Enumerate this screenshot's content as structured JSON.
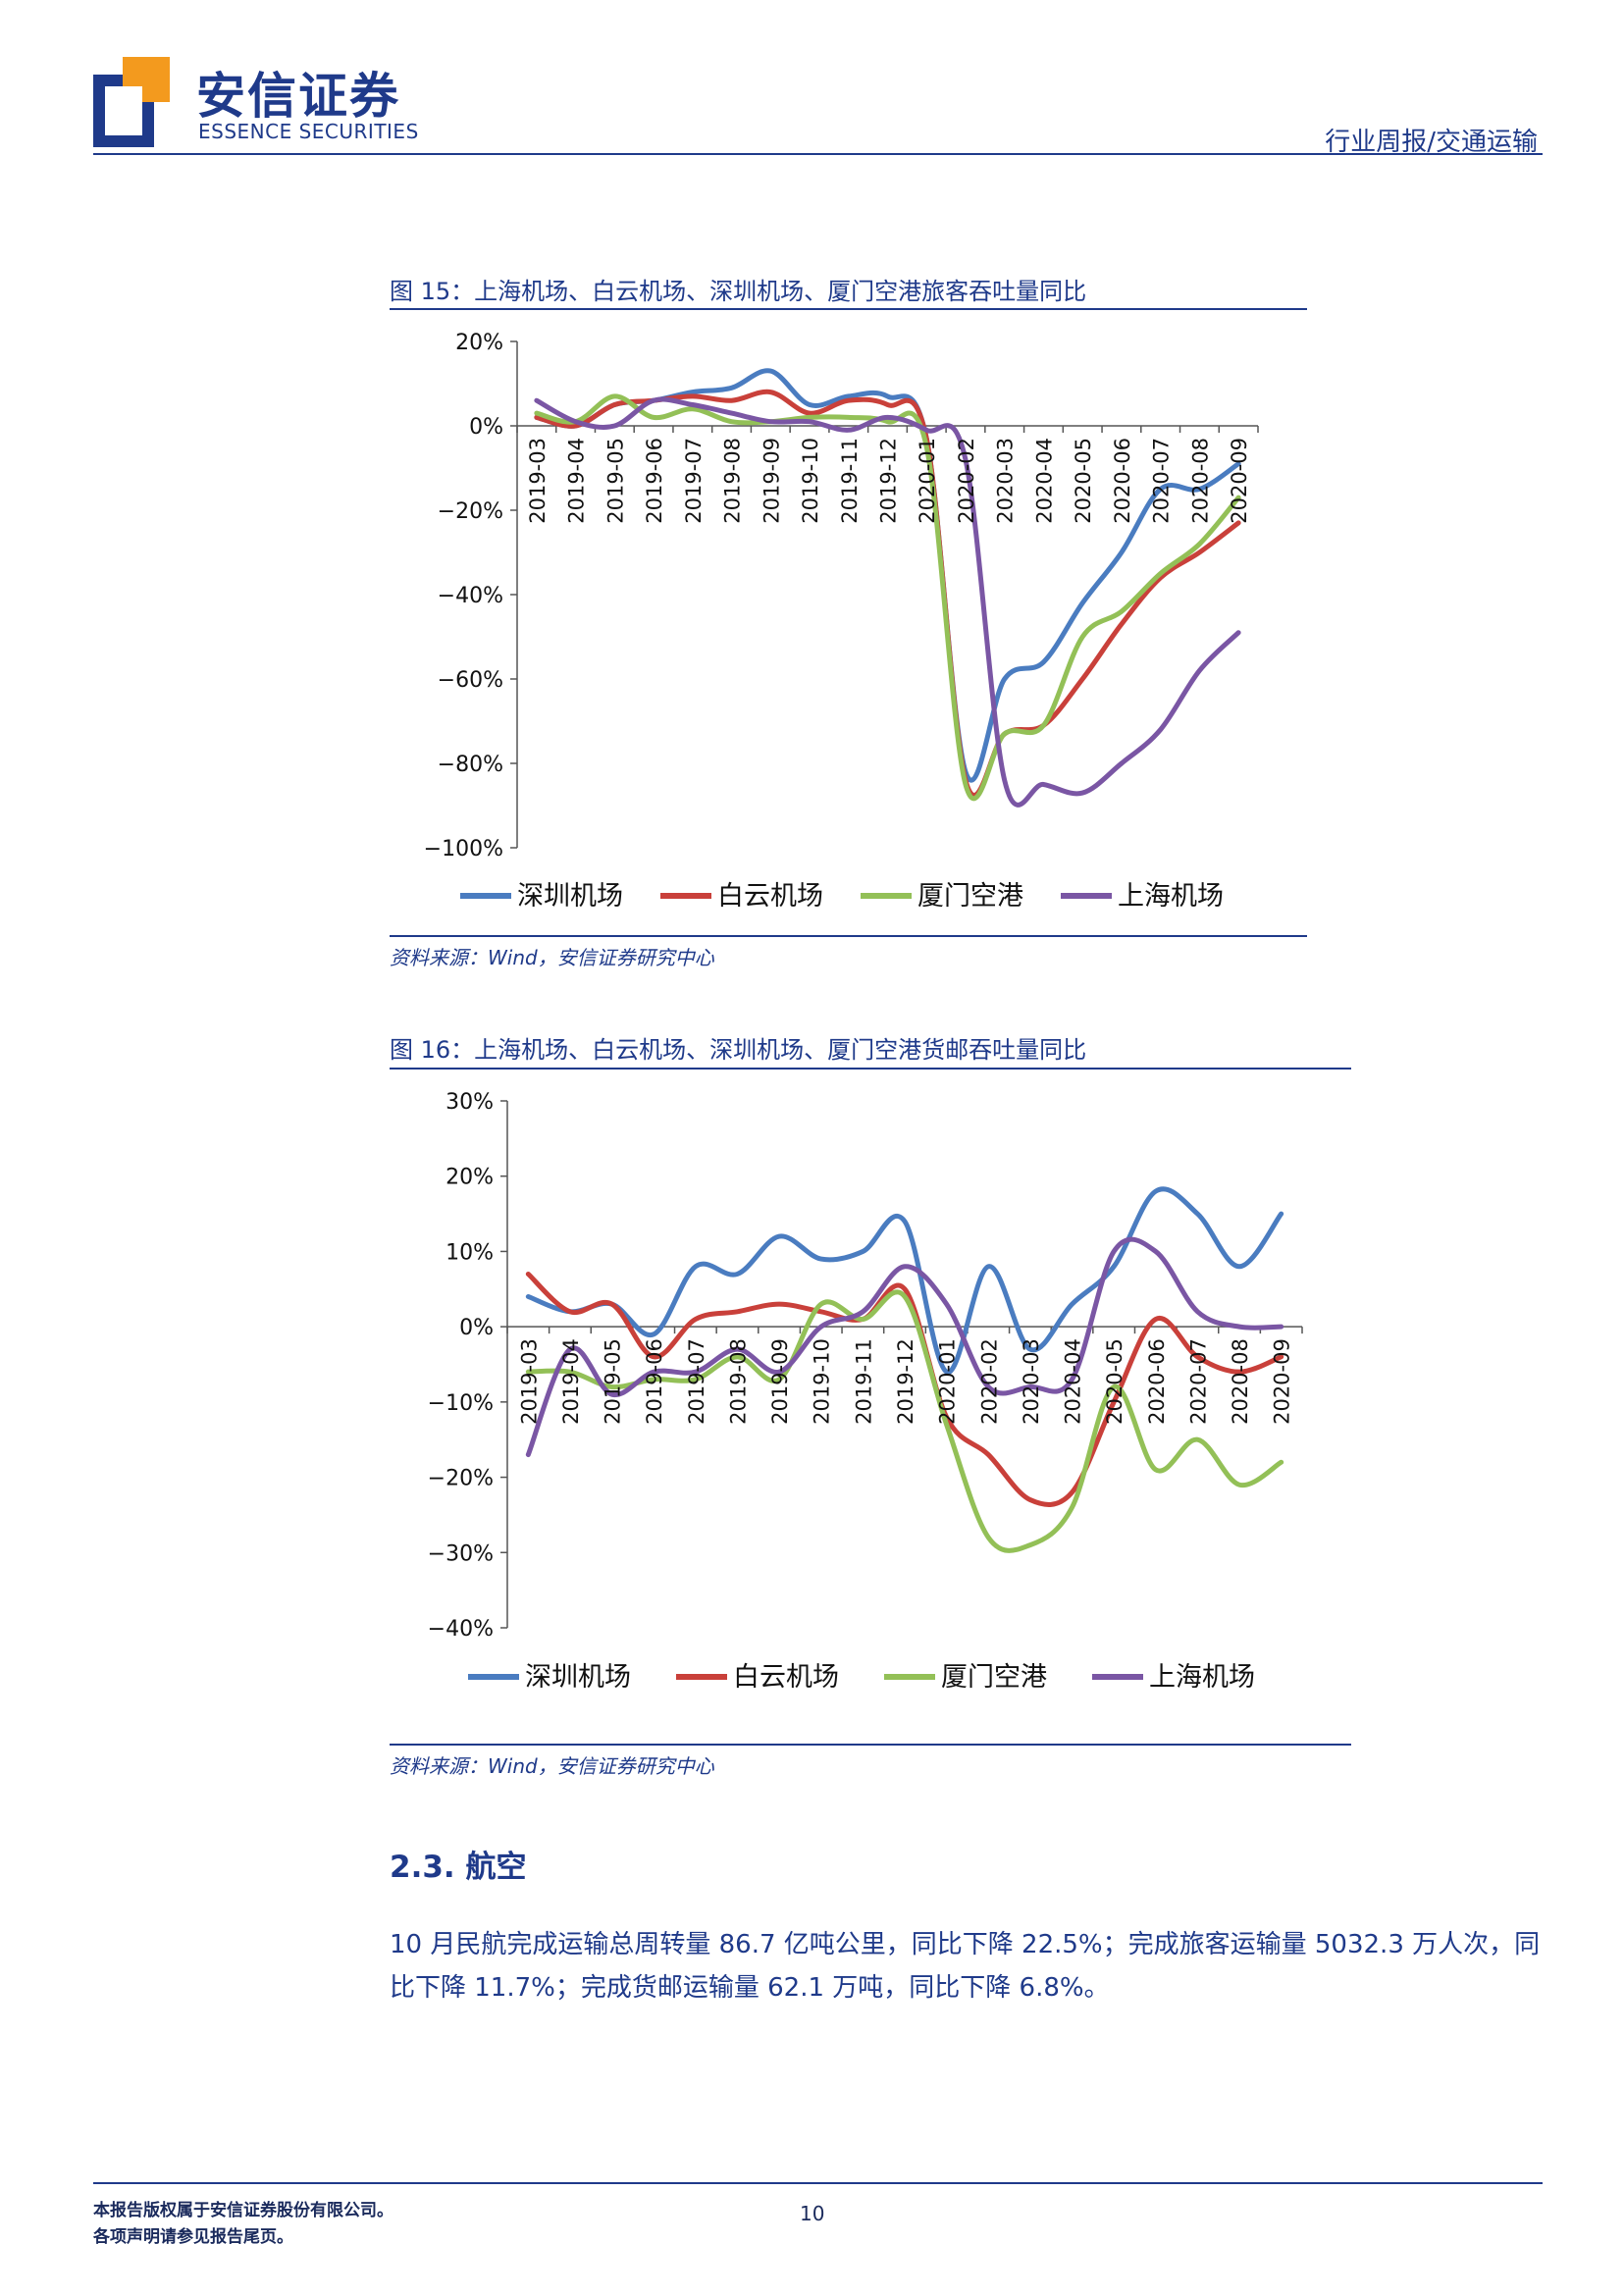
{
  "header": {
    "brand_cn": "安信证券",
    "brand_en": "ESSENCE SECURITIES",
    "report_type": "行业周报/交通运输",
    "logo_colors": [
      "#1f3a8a",
      "#f39a1e"
    ]
  },
  "figure15": {
    "title": "图 15：上海机场、白云机场、深圳机场、厦门空港旅客吞吐量同比",
    "source": "资料来源：Wind，安信证券研究中心"
  },
  "figure16": {
    "title": "图 16：上海机场、白云机场、深圳机场、厦门空港货邮吞吐量同比",
    "source": "资料来源：Wind，安信证券研究中心"
  },
  "section": {
    "title": "2.3. 航空",
    "paragraph": "10 月民航完成运输总周转量 86.7 亿吨公里，同比下降 22.5%；完成旅客运输量 5032.3 万人次，同比下降 11.7%；完成货邮运输量 62.1 万吨，同比下降 6.8%。"
  },
  "footer": {
    "line1": "本报告版权属于安信证券股份有限公司。",
    "line2": "各项声明请参见报告尾页。",
    "page": "10"
  },
  "chart_data": [
    {
      "type": "line",
      "categories": [
        "2019-03",
        "2019-04",
        "2019-05",
        "2019-06",
        "2019-07",
        "2019-08",
        "2019-09",
        "2019-10",
        "2019-11",
        "2019-12",
        "2020-01",
        "2020-02",
        "2020-03",
        "2020-04",
        "2020-05",
        "2020-06",
        "2020-07",
        "2020-08",
        "2020-09"
      ],
      "ylim": [
        -100,
        20
      ],
      "yticks": [
        "20%",
        "0%",
        "−20%",
        "−40%",
        "−60%",
        "−80%",
        "−100%"
      ],
      "legend_position": "bottom",
      "series": [
        {
          "name": "深圳机场",
          "color": "#4a7cc0",
          "values": [
            2,
            0,
            5,
            6,
            8,
            9,
            13,
            5,
            7,
            7,
            -3,
            -82,
            -60,
            -56,
            -42,
            -30,
            -15,
            -15,
            -9
          ]
        },
        {
          "name": "白云机场",
          "color": "#c9403a",
          "values": [
            2,
            0,
            5,
            6,
            7,
            6,
            8,
            3,
            6,
            5,
            -3,
            -84,
            -73,
            -71,
            -60,
            -47,
            -36,
            -30,
            -23
          ]
        },
        {
          "name": "厦门空港",
          "color": "#93c057",
          "values": [
            3,
            1,
            7,
            2,
            4,
            1,
            1,
            2,
            2,
            1,
            -5,
            -85,
            -73,
            -71,
            -50,
            -44,
            -35,
            -28,
            -17
          ]
        },
        {
          "name": "上海机场",
          "color": "#7a56a4",
          "values": [
            6,
            1,
            0,
            6,
            5,
            3,
            1,
            1,
            -1,
            2,
            -1,
            -8,
            -84,
            -85,
            -87,
            -80,
            -72,
            -58,
            -49
          ]
        }
      ]
    },
    {
      "type": "line",
      "categories": [
        "2019-03",
        "2019-04",
        "2019-05",
        "2019-06",
        "2019-07",
        "2019-08",
        "2019-09",
        "2019-10",
        "2019-11",
        "2019-12",
        "2020-01",
        "2020-02",
        "2020-03",
        "2020-04",
        "2020-05",
        "2020-06",
        "2020-07",
        "2020-08",
        "2020-09"
      ],
      "ylim": [
        -40,
        30
      ],
      "yticks": [
        "30%",
        "20%",
        "10%",
        "0%",
        "−10%",
        "−20%",
        "−30%",
        "−40%"
      ],
      "legend_position": "bottom",
      "series": [
        {
          "name": "深圳机场",
          "color": "#4a7cc0",
          "values": [
            4,
            2,
            3,
            -1,
            8,
            7,
            12,
            9,
            10,
            14,
            -6,
            8,
            -3,
            3,
            8,
            18,
            15,
            8,
            15
          ]
        },
        {
          "name": "白云机场",
          "color": "#c9403a",
          "values": [
            7,
            2,
            3,
            -4,
            1,
            2,
            3,
            2,
            1,
            5,
            -12,
            -17,
            -23,
            -22,
            -10,
            1,
            -4,
            -6,
            -4
          ]
        },
        {
          "name": "厦门空港",
          "color": "#93c057",
          "values": [
            -6,
            -6,
            -8,
            -7,
            -7,
            -4,
            -7,
            3,
            1,
            4,
            -13,
            -28,
            -29,
            -24,
            -8,
            -19,
            -15,
            -21,
            -18
          ]
        },
        {
          "name": "上海机场",
          "color": "#7a56a4",
          "values": [
            -17,
            -3,
            -9,
            -6,
            -6,
            -3,
            -6,
            0,
            2,
            8,
            3,
            -8,
            -8,
            -7,
            10,
            10,
            2,
            0,
            0
          ]
        }
      ]
    }
  ]
}
